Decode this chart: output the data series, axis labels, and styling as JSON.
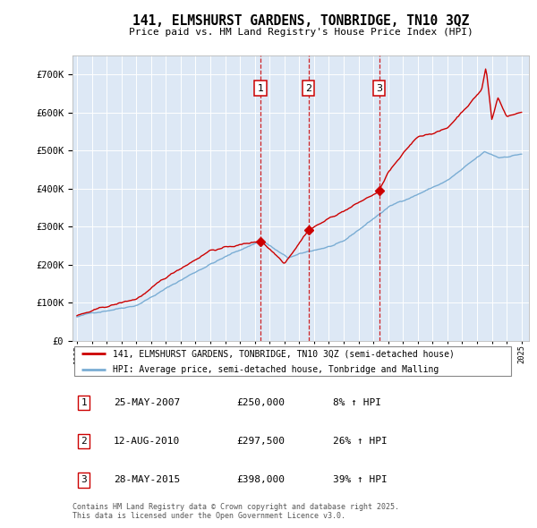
{
  "title": "141, ELMSHURST GARDENS, TONBRIDGE, TN10 3QZ",
  "subtitle": "Price paid vs. HM Land Registry's House Price Index (HPI)",
  "plot_bg_color": "#dde8f5",
  "grid_color": "#ffffff",
  "red_line_color": "#cc0000",
  "blue_line_color": "#7aadd4",
  "sale_dates": [
    2007.38,
    2010.62,
    2015.4
  ],
  "sale_labels": [
    "1",
    "2",
    "3"
  ],
  "sale_prices": [
    250000,
    297500,
    398000
  ],
  "ylim": [
    0,
    750000
  ],
  "yticks": [
    0,
    100000,
    200000,
    300000,
    400000,
    500000,
    600000,
    700000
  ],
  "xlim_left": 1994.7,
  "xlim_right": 2025.5,
  "legend_red": "141, ELMSHURST GARDENS, TONBRIDGE, TN10 3QZ (semi-detached house)",
  "legend_blue": "HPI: Average price, semi-detached house, Tonbridge and Malling",
  "table_entries": [
    {
      "num": "1",
      "date": "25-MAY-2007",
      "price": "£250,000",
      "change": "8% ↑ HPI"
    },
    {
      "num": "2",
      "date": "12-AUG-2010",
      "price": "£297,500",
      "change": "26% ↑ HPI"
    },
    {
      "num": "3",
      "date": "28-MAY-2015",
      "price": "£398,000",
      "change": "39% ↑ HPI"
    }
  ],
  "footer": "Contains HM Land Registry data © Crown copyright and database right 2025.\nThis data is licensed under the Open Government Licence v3.0."
}
